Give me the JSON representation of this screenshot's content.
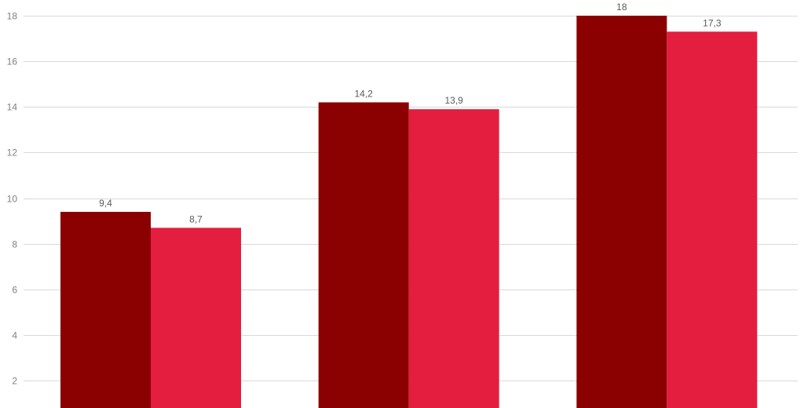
{
  "chart_data": {
    "type": "bar",
    "categories": [
      "",
      "",
      ""
    ],
    "series": [
      {
        "values": [
          9.4,
          14.2,
          18
        ],
        "labels": [
          "9,4",
          "14,2",
          "18"
        ],
        "color": "#8b0000"
      },
      {
        "values": [
          8.7,
          13.9,
          17.3
        ],
        "labels": [
          "8,7",
          "13,9",
          "17,3"
        ],
        "color": "#e31e3f"
      }
    ],
    "y_ticks": [
      2,
      4,
      6,
      8,
      10,
      12,
      14,
      16,
      18
    ],
    "ylim": [
      0.8,
      18
    ],
    "grid": true,
    "legend": "none",
    "title": "",
    "xlabel": "",
    "ylabel": ""
  }
}
